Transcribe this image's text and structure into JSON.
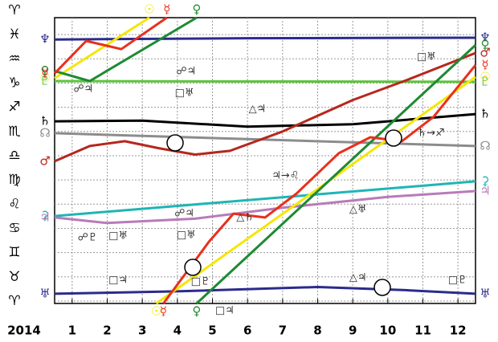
{
  "chart_data": {
    "type": "line",
    "year_label": "2014",
    "xlim": [
      0.5,
      12.5
    ],
    "xticks": [
      1,
      2,
      3,
      4,
      5,
      6,
      7,
      8,
      9,
      10,
      11,
      12
    ],
    "ylim": [
      -0.1,
      11.7
    ],
    "yticks": [
      {
        "value": 0,
        "label": "♈"
      },
      {
        "value": 1,
        "label": "♉"
      },
      {
        "value": 2,
        "label": "♊"
      },
      {
        "value": 3,
        "label": "♋"
      },
      {
        "value": 4,
        "label": "♌"
      },
      {
        "value": 5,
        "label": "♍"
      },
      {
        "value": 6,
        "label": "♎"
      },
      {
        "value": 7,
        "label": "♏"
      },
      {
        "value": 8,
        "label": "♐"
      },
      {
        "value": 9,
        "label": "♑"
      },
      {
        "value": 10,
        "label": "♒"
      },
      {
        "value": 11,
        "label": "♓"
      },
      {
        "value": 12,
        "label": "♈"
      }
    ],
    "grid": true,
    "series": [
      {
        "name": "♆",
        "color": "#2b2b8c",
        "x": [
          0.5,
          6,
          12.5
        ],
        "values": [
          10.8,
          10.85,
          10.87
        ]
      },
      {
        "name": "♇",
        "color": "#5cc43c",
        "x": [
          0.5,
          12.5
        ],
        "values": [
          9.08,
          9.05
        ]
      },
      {
        "name": "♄",
        "color": "#000000",
        "x": [
          0.5,
          3,
          6,
          9,
          12.5
        ],
        "values": [
          7.42,
          7.45,
          7.2,
          7.3,
          7.72
        ]
      },
      {
        "name": "☊",
        "color": "#8c8c8c",
        "x": [
          0.5,
          12.5
        ],
        "values": [
          6.93,
          6.4
        ]
      },
      {
        "name": "⚳",
        "color": "#1fb5b5",
        "x": [
          0.5,
          12.5
        ],
        "values": [
          3.51,
          4.94
        ]
      },
      {
        "name": "♃",
        "color": "#b87bb8",
        "x": [
          0.5,
          2,
          4.5,
          7,
          10,
          12.5
        ],
        "values": [
          3.45,
          3.22,
          3.4,
          3.85,
          4.3,
          4.54
        ]
      },
      {
        "name": "♅",
        "color": "#2b2b8c",
        "x": [
          0.5,
          4,
          8,
          10.5,
          12.5
        ],
        "values": [
          0.3,
          0.4,
          0.58,
          0.45,
          0.3
        ]
      },
      {
        "name": "♂",
        "color": "#b5281e",
        "x": [
          0.5,
          1.5,
          2.5,
          3.5,
          4.5,
          5.5,
          7,
          9,
          10.5,
          12.5
        ],
        "values": [
          5.77,
          6.4,
          6.6,
          6.3,
          6.05,
          6.2,
          7.0,
          8.3,
          9.1,
          10.24
        ]
      },
      {
        "name": "☉",
        "color": "#f5e600",
        "x": [
          0.5,
          3.2,
          null,
          3.4,
          12.5
        ],
        "values": [
          9.2,
          11.7,
          null,
          -0.1,
          9.25
        ]
      },
      {
        "name": "♀",
        "color": "#1e8a32",
        "x": [
          0.5,
          1.5,
          4.55,
          null,
          4.55,
          12.5
        ],
        "values": [
          9.5,
          9.08,
          11.7,
          null,
          -0.1,
          10.57
        ]
      },
      {
        "name": "☿",
        "color": "#e8301e",
        "x": [
          0.5,
          1.4,
          2.4,
          3.7,
          null,
          3.6,
          4.4,
          4.9,
          5.6,
          6.5,
          7.4,
          8.6,
          9.5,
          10.4,
          11.3,
          12.5
        ],
        "values": [
          9.4,
          10.74,
          10.4,
          11.7,
          null,
          -0.1,
          1.46,
          2.45,
          3.61,
          3.45,
          4.44,
          6.1,
          6.76,
          6.6,
          7.6,
          9.74
        ]
      }
    ],
    "annotations": [
      {
        "text": "☍♃",
        "x": 1.32,
        "y": 8.75
      },
      {
        "text": "☍♃",
        "x": 4.25,
        "y": 9.48
      },
      {
        "text": "□♅",
        "x": 4.2,
        "y": 8.58
      },
      {
        "text": "□♅",
        "x": 11.1,
        "y": 10.08
      },
      {
        "text": "△♃",
        "x": 6.28,
        "y": 7.92
      },
      {
        "text": "♃→♌",
        "x": 7.08,
        "y": 5.17
      },
      {
        "text": "♄→♐",
        "x": 11.23,
        "y": 6.93
      },
      {
        "text": "△♄",
        "x": 5.93,
        "y": 3.45
      },
      {
        "text": "△♅",
        "x": 9.15,
        "y": 3.78
      },
      {
        "text": "☍♇",
        "x": 1.44,
        "y": 2.62
      },
      {
        "text": "□♅",
        "x": 2.31,
        "y": 2.68
      },
      {
        "text": "☍♃",
        "x": 4.2,
        "y": 3.61
      },
      {
        "text": "□♅",
        "x": 4.25,
        "y": 2.72
      },
      {
        "text": "□♃",
        "x": 2.31,
        "y": 0.86
      },
      {
        "text": "□♇",
        "x": 4.66,
        "y": 0.8
      },
      {
        "text": "□♃",
        "x": 5.35,
        "y": -0.4
      },
      {
        "text": "△♃",
        "x": 9.15,
        "y": 0.96
      },
      {
        "text": "□♇",
        "x": 11.99,
        "y": 0.86
      }
    ]
  }
}
